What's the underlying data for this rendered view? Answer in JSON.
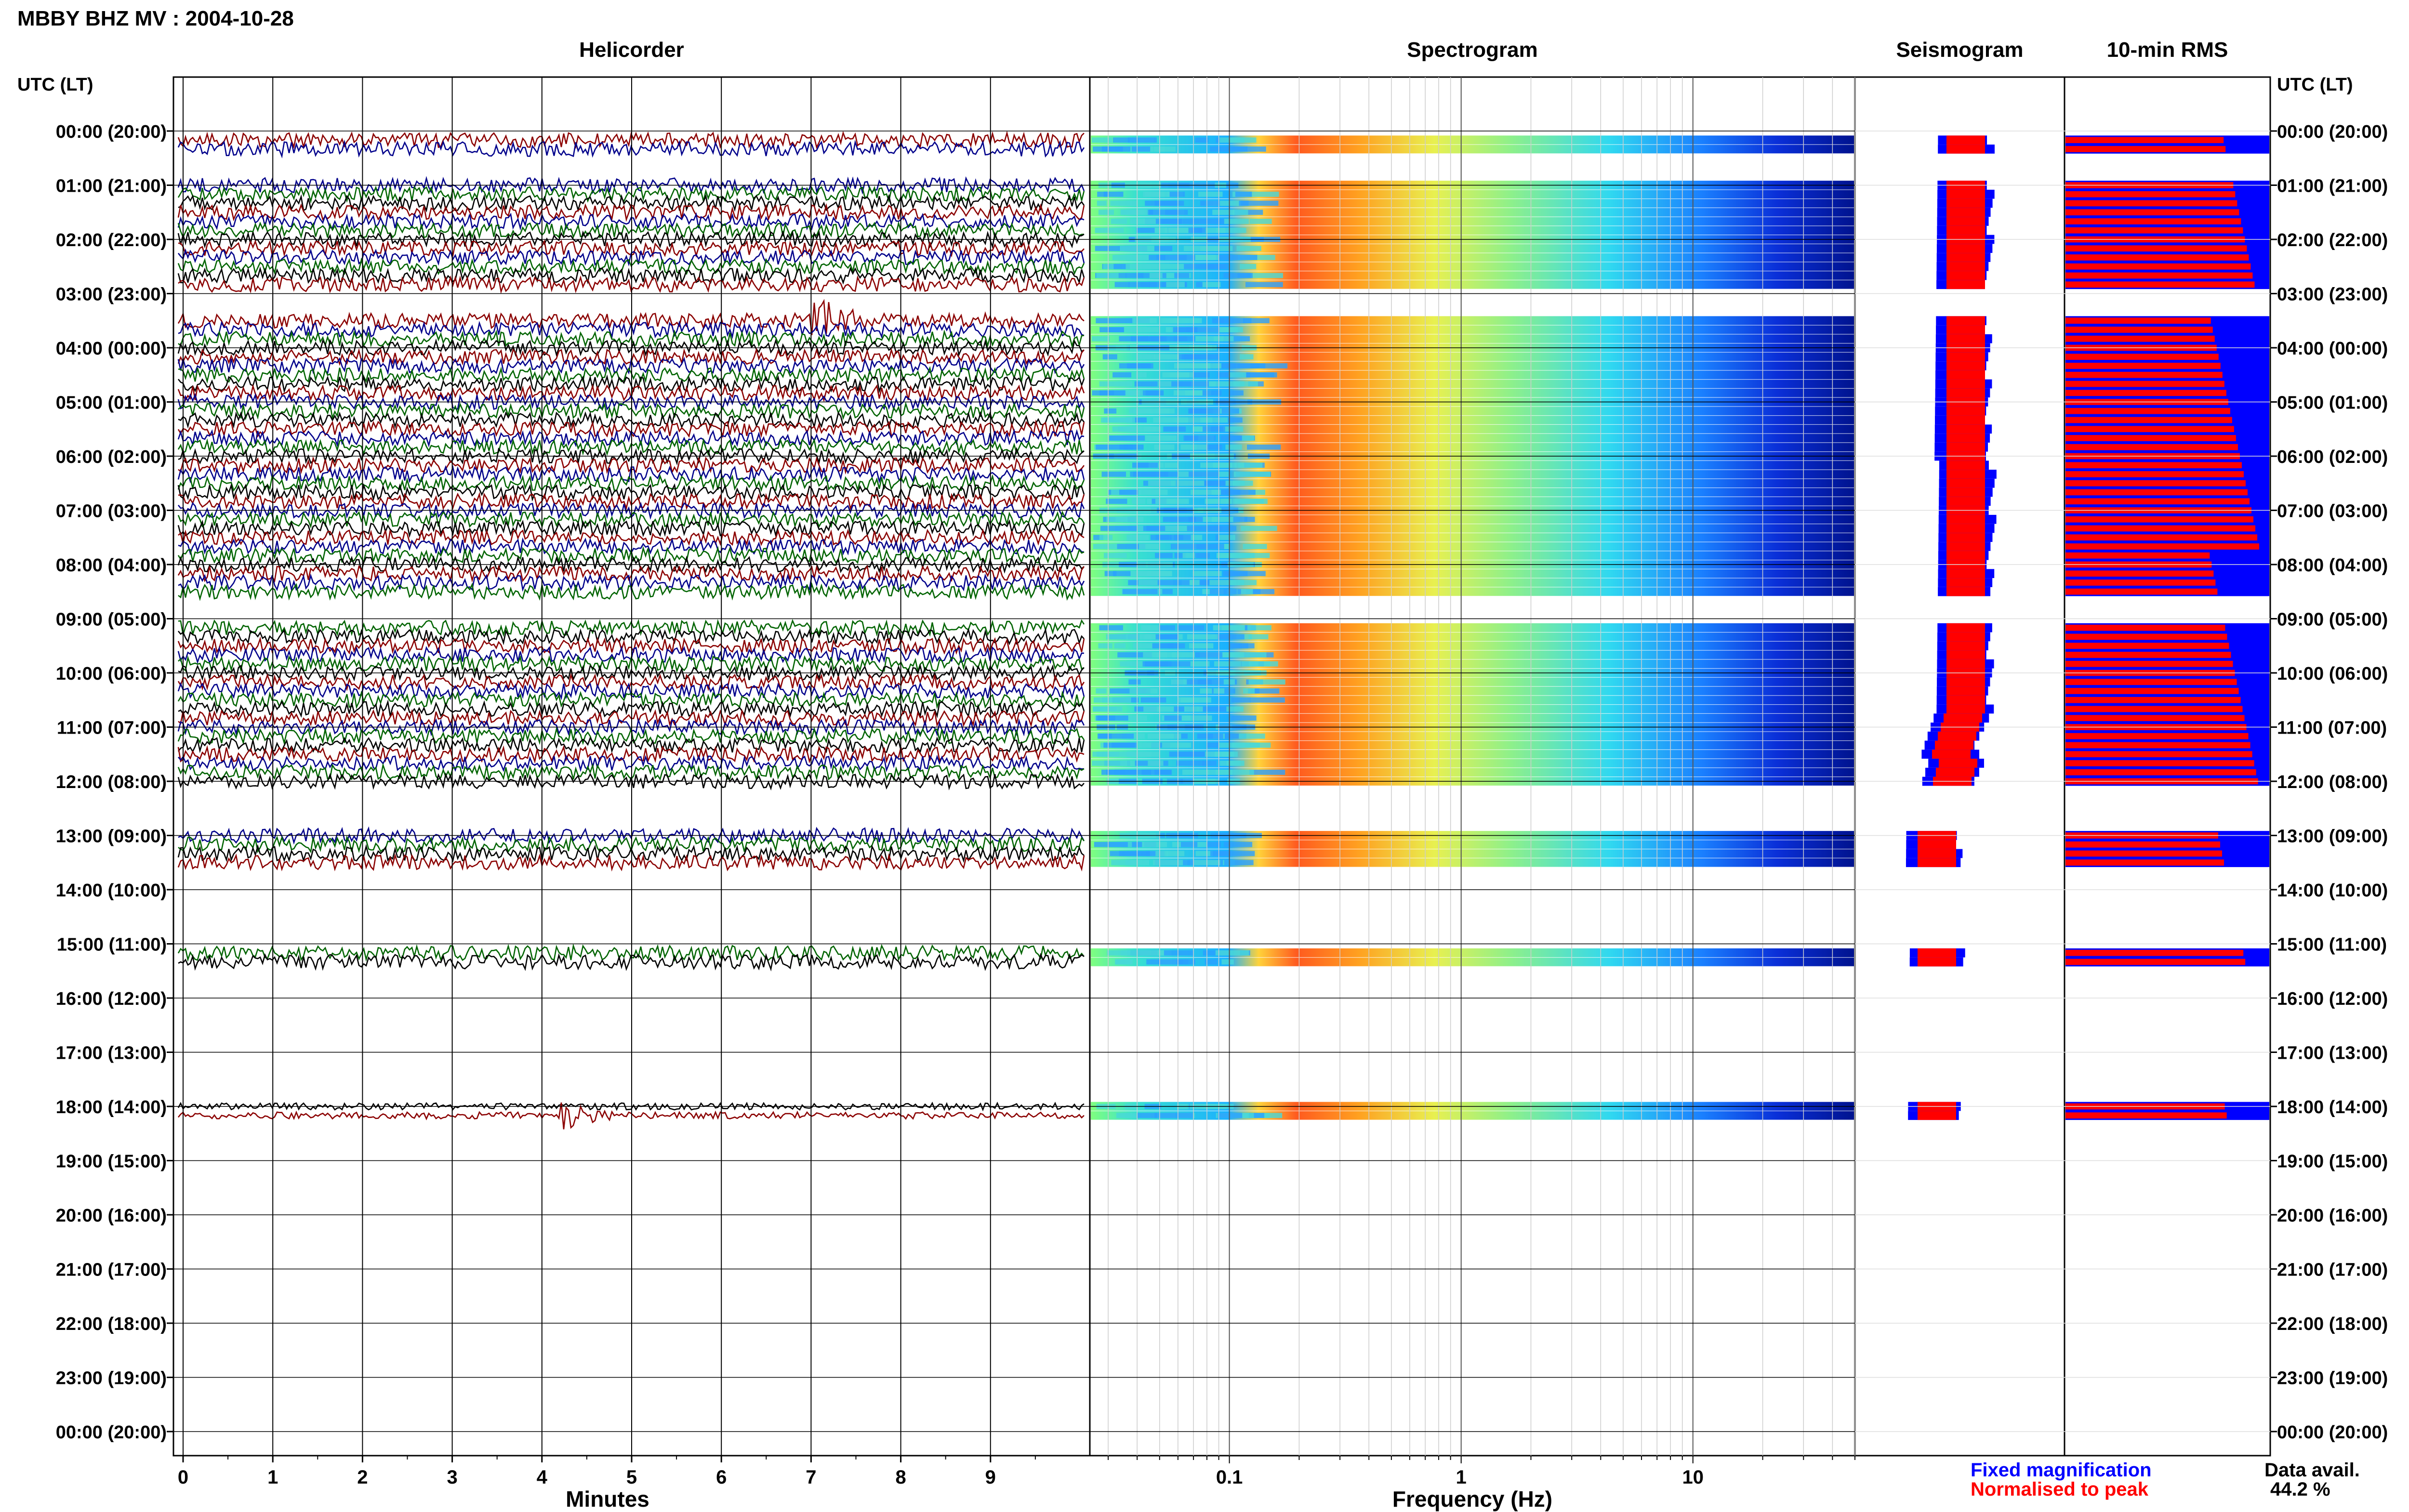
{
  "header": {
    "title": "MBBY BHZ MV : 2004-10-28"
  },
  "panels": {
    "helicorder": "Helicorder",
    "spectrogram": "Spectrogram",
    "seismogram": "Seismogram",
    "rms": "10-min RMS"
  },
  "axis": {
    "utc_label_left": "UTC (LT)",
    "utc_label_right": "UTC (LT)",
    "minutes_label": "Minutes",
    "frequency_label": "Frequency (Hz)"
  },
  "legend": {
    "fixed": "Fixed magnification",
    "normalised": "Normalised to peak",
    "fixed_color": "#0000ff",
    "normalised_color": "#ff0000"
  },
  "data_avail": {
    "label": "Data avail.",
    "value": "44.2 %"
  },
  "colors": {
    "black": "#000000",
    "red": "#8b0000",
    "blue": "#00008b",
    "green": "#006400"
  },
  "chart_data": {
    "type": "helicorder",
    "hour_labels": [
      "00:00 (20:00)",
      "01:00 (21:00)",
      "02:00 (22:00)",
      "03:00 (23:00)",
      "04:00 (00:00)",
      "05:00 (01:00)",
      "06:00 (02:00)",
      "07:00 (03:00)",
      "08:00 (04:00)",
      "09:00 (05:00)",
      "10:00 (06:00)",
      "11:00 (07:00)",
      "12:00 (08:00)",
      "13:00 (09:00)",
      "14:00 (10:00)",
      "15:00 (11:00)",
      "16:00 (12:00)",
      "17:00 (13:00)",
      "18:00 (14:00)",
      "19:00 (15:00)",
      "20:00 (16:00)",
      "21:00 (17:00)",
      "22:00 (18:00)",
      "23:00 (19:00)",
      "00:00 (20:00)"
    ],
    "minute_ticks": [
      0,
      1,
      2,
      3,
      4,
      5,
      6,
      7,
      8,
      9
    ],
    "minutes_range": [
      0,
      10
    ],
    "freq_range": [
      0.025,
      50
    ],
    "freq_tick_labels": [
      0.1,
      1,
      10
    ],
    "slots_per_hour": 6,
    "data_slots": [
      1,
      2,
      6,
      7,
      8,
      9,
      10,
      11,
      12,
      13,
      14,
      15,
      16,
      17,
      21,
      22,
      23,
      24,
      25,
      26,
      27,
      28,
      29,
      30,
      31,
      32,
      33,
      34,
      35,
      36,
      37,
      38,
      39,
      40,
      41,
      42,
      43,
      44,
      45,
      46,
      47,
      48,
      49,
      50,
      51,
      55,
      56,
      57,
      58,
      59,
      60,
      61,
      62,
      63,
      64,
      65,
      66,
      67,
      68,
      69,
      70,
      71,
      72,
      78,
      79,
      80,
      81,
      91,
      92,
      108,
      109
    ],
    "events": [
      {
        "slot": 21,
        "minute": 7.0,
        "amplitude": 3.5
      },
      {
        "slot": 109,
        "minute": 4.2,
        "amplitude": 4.5
      }
    ]
  }
}
